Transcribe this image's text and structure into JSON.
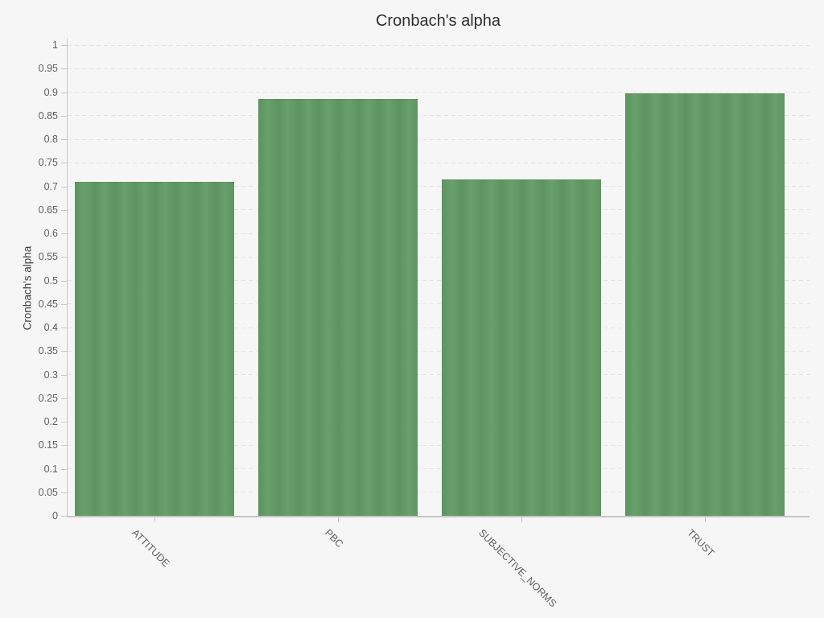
{
  "chart_data": {
    "type": "bar",
    "title": "Cronbach's alpha",
    "ylabel": "Cronbach's alpha",
    "xlabel": "",
    "categories": [
      "ATTITUDE",
      "PBC",
      "SUBJECTIVE_NORMS",
      "TRUST"
    ],
    "values": [
      0.71,
      0.885,
      0.715,
      0.898
    ],
    "ylim": [
      0,
      1
    ],
    "ytick_step": 0.05,
    "ytick_labels": [
      "0",
      "0.05",
      "0.1",
      "0.15",
      "0.2",
      "0.25",
      "0.3",
      "0.35",
      "0.4",
      "0.45",
      "0.5",
      "0.55",
      "0.6",
      "0.65",
      "0.7",
      "0.75",
      "0.8",
      "0.85",
      "0.9",
      "0.95",
      "1"
    ],
    "legend": "none",
    "grid": "horizontal-dashed",
    "colors": {
      "bar_base": "#619a62",
      "bar_dark": "#5d9360",
      "bar_light": "#68a06a",
      "background": "#f6f6f6",
      "gridline": "#e3e3e3",
      "axis": "#c6c6c6",
      "tick_label": "#5f5f5f",
      "title": "#2f2f2f"
    }
  }
}
